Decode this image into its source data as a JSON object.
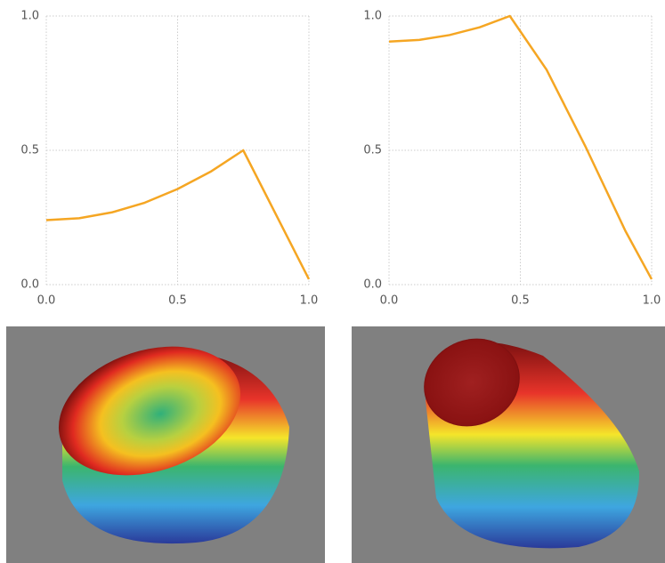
{
  "chart_data": [
    {
      "type": "line",
      "x": [
        0,
        0.125,
        0.25,
        0.375,
        0.5,
        0.625,
        0.75,
        1.0
      ],
      "values": [
        0.24,
        0.247,
        0.269,
        0.305,
        0.356,
        0.42,
        0.5,
        0.02
      ],
      "color": "#f5a623",
      "xlim": [
        0,
        1
      ],
      "ylim": [
        0,
        1
      ],
      "xticks": [
        {
          "value": 0,
          "label": "0.0"
        },
        {
          "value": 0.5,
          "label": "0.5"
        },
        {
          "value": 1,
          "label": "1.0"
        }
      ],
      "yticks": [
        {
          "value": 0,
          "label": "0.0"
        },
        {
          "value": 0.5,
          "label": "0.5"
        },
        {
          "value": 1,
          "label": "1.0"
        }
      ],
      "grid": true
    },
    {
      "type": "line",
      "x": [
        0,
        0.115,
        0.23,
        0.345,
        0.46,
        0.6,
        0.75,
        0.9,
        1.0
      ],
      "values": [
        0.905,
        0.911,
        0.929,
        0.958,
        1.0,
        0.8,
        0.51,
        0.2,
        0.02
      ],
      "color": "#f5a623",
      "xlim": [
        0,
        1
      ],
      "ylim": [
        0,
        1
      ],
      "xticks": [
        {
          "value": 0,
          "label": "0.0"
        },
        {
          "value": 0.5,
          "label": "0.5"
        },
        {
          "value": 1,
          "label": "1.0"
        }
      ],
      "yticks": [
        {
          "value": 0,
          "label": "0.0"
        },
        {
          "value": 0.5,
          "label": "0.5"
        },
        {
          "value": 1,
          "label": "1.0"
        }
      ],
      "grid": true
    }
  ]
}
